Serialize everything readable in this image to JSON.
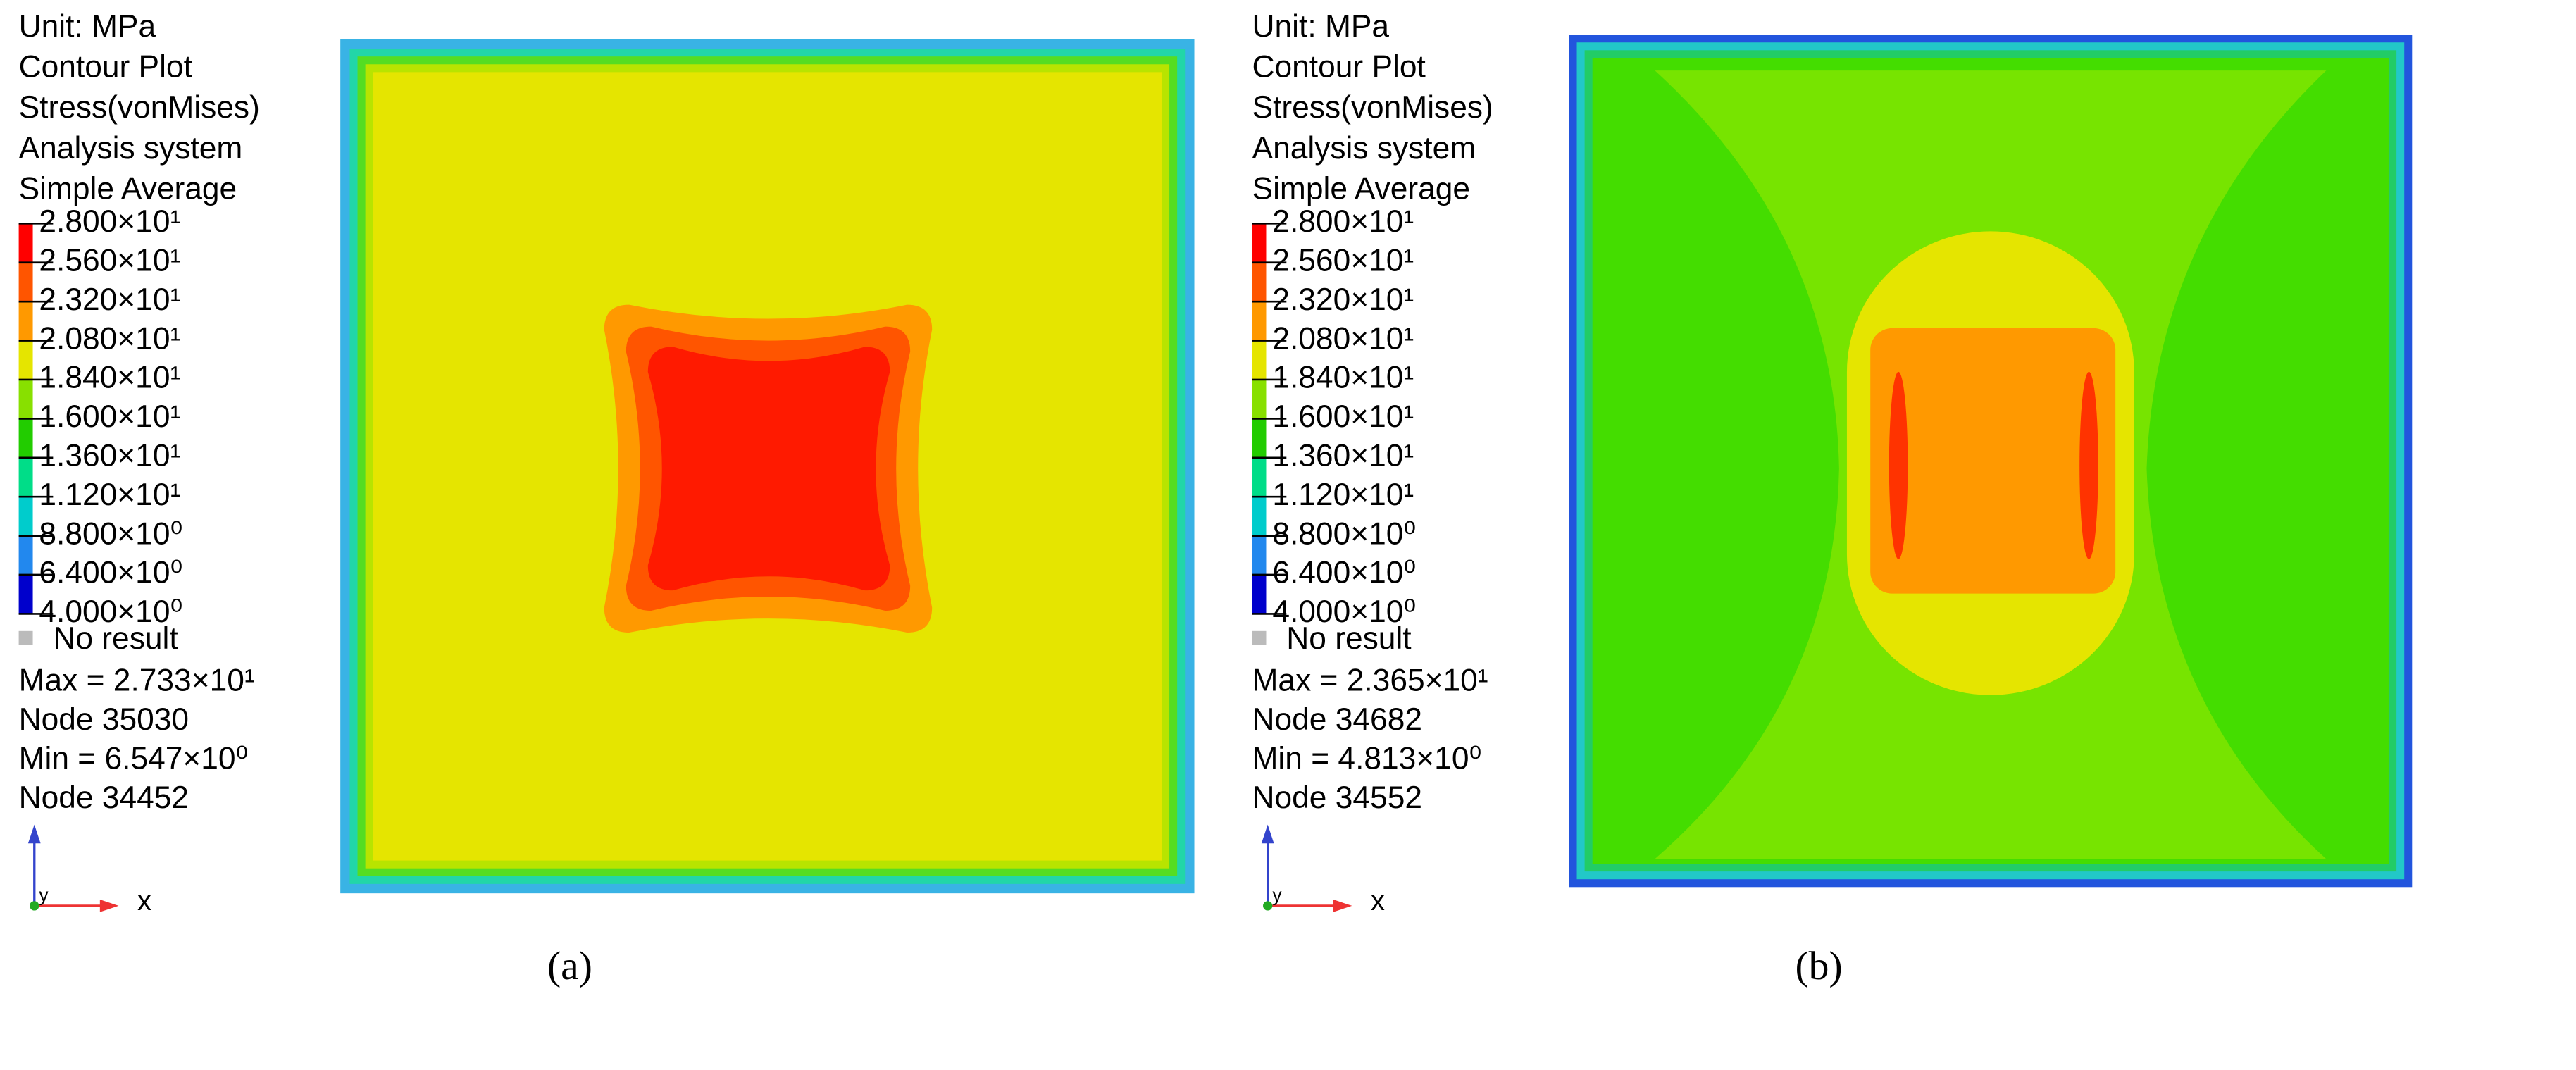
{
  "panels": [
    {
      "legend_header": [
        "Unit: MPa",
        "Contour Plot",
        "Stress(vonMises)",
        "Analysis system",
        "Simple Average"
      ],
      "levels": [
        "2.800×10¹",
        "2.560×10¹",
        "2.320×10¹",
        "2.080×10¹",
        "1.840×10¹",
        "1.600×10¹",
        "1.360×10¹",
        "1.120×10¹",
        "8.800×10⁰",
        "6.400×10⁰",
        "4.000×10⁰"
      ],
      "colors": [
        "#ff0000",
        "#ff5500",
        "#ff9900",
        "#e5e500",
        "#88e000",
        "#22cc00",
        "#00dd88",
        "#00cccc",
        "#2288ee",
        "#0000cc"
      ],
      "no_result": "No result",
      "max": "Max = 2.733×10¹",
      "max_node": "Node 35030",
      "min": "Min = 6.547×10⁰",
      "min_node": "Node 34452",
      "axis_y": "y",
      "axis_x": "x",
      "caption": "(a)"
    },
    {
      "legend_header": [
        "Unit: MPa",
        "Contour Plot",
        "Stress(vonMises)",
        "Analysis system",
        "Simple Average"
      ],
      "levels": [
        "2.800×10¹",
        "2.560×10¹",
        "2.320×10¹",
        "2.080×10¹",
        "1.840×10¹",
        "1.600×10¹",
        "1.360×10¹",
        "1.120×10¹",
        "8.800×10⁰",
        "6.400×10⁰",
        "4.000×10⁰"
      ],
      "colors": [
        "#ff0000",
        "#ff5500",
        "#ff9900",
        "#e5e500",
        "#88e000",
        "#22cc00",
        "#00dd88",
        "#00cccc",
        "#2288ee",
        "#0000cc"
      ],
      "no_result": "No result",
      "max": "Max = 2.365×10¹",
      "max_node": "Node 34682",
      "min": "Min = 4.813×10⁰",
      "min_node": "Node 34552",
      "axis_y": "y",
      "axis_x": "x",
      "caption": "(b)"
    }
  ]
}
